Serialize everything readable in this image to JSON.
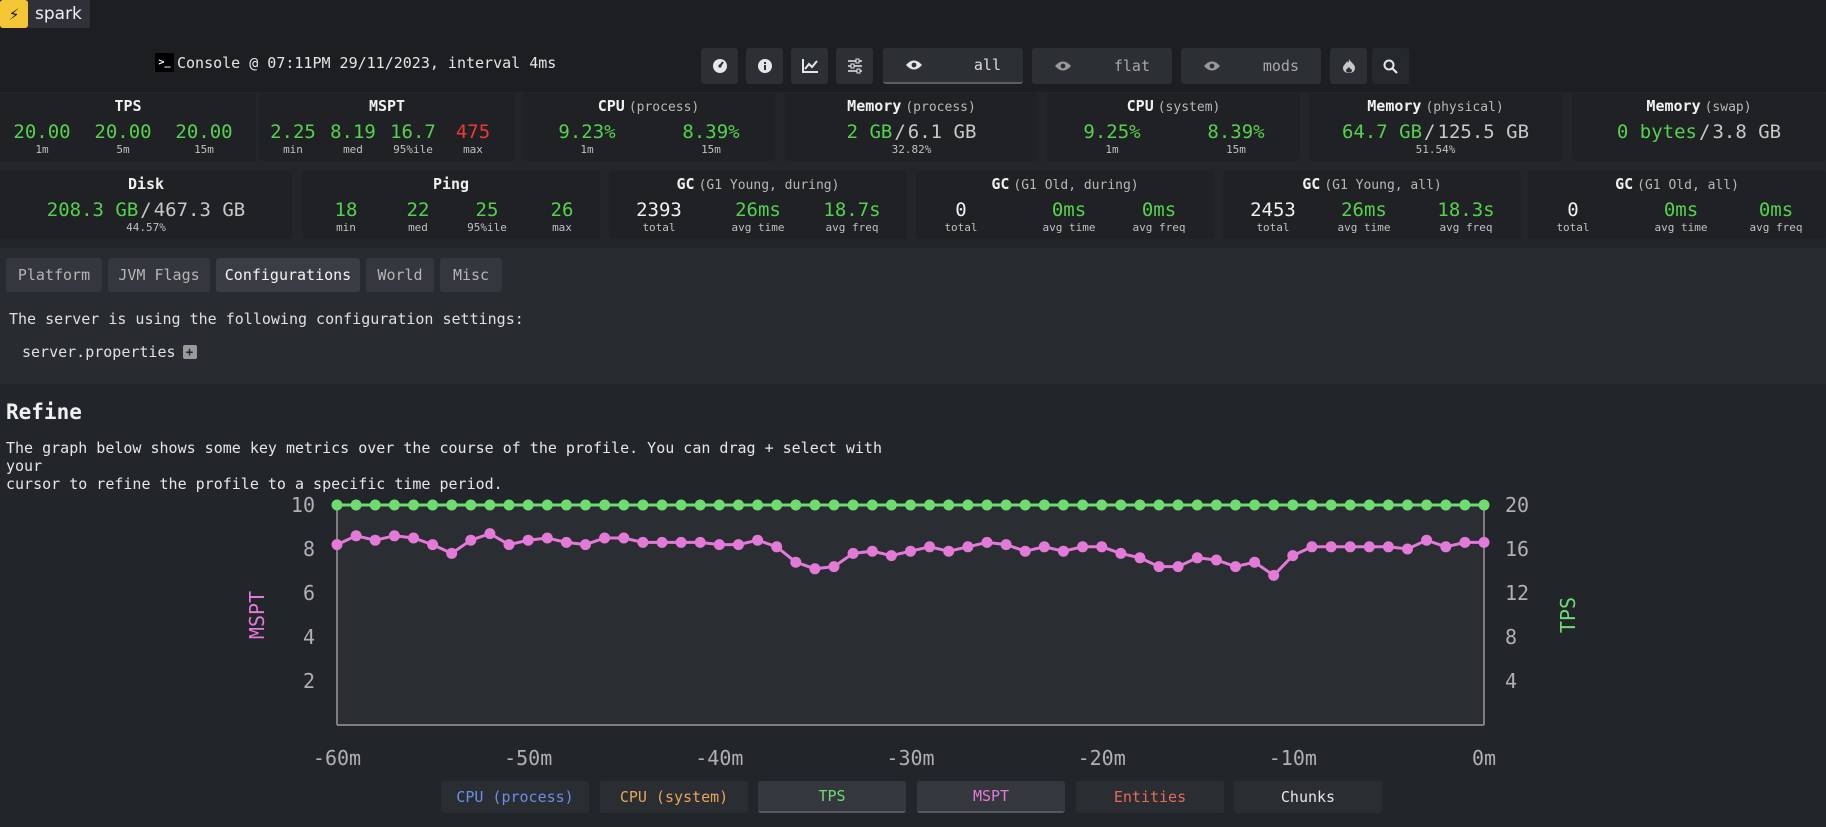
{
  "app": {
    "name": "spark",
    "logo_glyph": "⚡"
  },
  "header": {
    "console_icon": ">_",
    "console_text": "Console @ 07:11PM 29/11/2023, interval 4ms",
    "buttons": [
      {
        "name": "cpu-icon",
        "icon": "gauge"
      },
      {
        "name": "info-icon",
        "icon": "info"
      },
      {
        "name": "graph-icon",
        "icon": "chart"
      },
      {
        "name": "settings-icon",
        "icon": "sliders"
      }
    ],
    "view_modes": [
      {
        "label": "all",
        "active": true
      },
      {
        "label": "flat",
        "active": false
      },
      {
        "label": "mods",
        "active": false
      }
    ]
  },
  "stats_row1": [
    {
      "title": "TPS",
      "sub": "",
      "values": [
        {
          "v": "20.00",
          "c": "1m"
        },
        {
          "v": "20.00",
          "c": "5m"
        },
        {
          "v": "20.00",
          "c": "15m"
        }
      ]
    },
    {
      "title": "MSPT",
      "sub": "",
      "values": [
        {
          "v": "2.25",
          "c": "min"
        },
        {
          "v": "8.19",
          "c": "med"
        },
        {
          "v": "16.7",
          "c": "95%ile"
        },
        {
          "v": "475",
          "c": "max"
        }
      ]
    },
    {
      "title": "CPU",
      "sub": "(process)",
      "values": [
        {
          "v": "9.23%",
          "c": "1m"
        },
        {
          "v": "8.39%",
          "c": "15m"
        }
      ]
    },
    {
      "title": "Memory",
      "sub": "(process)",
      "used": "2 GB",
      "total": "6.1 GB",
      "caption": "32.82%"
    },
    {
      "title": "CPU",
      "sub": "(system)",
      "values": [
        {
          "v": "9.25%",
          "c": "1m"
        },
        {
          "v": "8.39%",
          "c": "15m"
        }
      ]
    },
    {
      "title": "Memory",
      "sub": "(physical)",
      "used": "64.7 GB",
      "total": "125.5 GB",
      "caption": "51.54%"
    },
    {
      "title": "Memory",
      "sub": "(swap)",
      "used": "0 bytes",
      "total": "3.8 GB",
      "caption": ""
    }
  ],
  "stats_row2": [
    {
      "title": "Disk",
      "sub": "",
      "used": "208.3 GB",
      "total": "467.3 GB",
      "caption": "44.57%"
    },
    {
      "title": "Ping",
      "sub": "",
      "values": [
        {
          "v": "18",
          "c": "min"
        },
        {
          "v": "22",
          "c": "med"
        },
        {
          "v": "25",
          "c": "95%ile"
        },
        {
          "v": "26",
          "c": "max"
        }
      ]
    },
    {
      "title": "GC",
      "sub": "(G1 Young, during)",
      "values": [
        {
          "v": "2393",
          "c": "total"
        },
        {
          "v": "26ms",
          "c": "avg time"
        },
        {
          "v": "18.7s",
          "c": "avg freq"
        }
      ]
    },
    {
      "title": "GC",
      "sub": "(G1 Old, during)",
      "values": [
        {
          "v": "0",
          "c": "total"
        },
        {
          "v": "0ms",
          "c": "avg time"
        },
        {
          "v": "0ms",
          "c": "avg freq"
        }
      ]
    },
    {
      "title": "GC",
      "sub": "(G1 Young, all)",
      "values": [
        {
          "v": "2453",
          "c": "total"
        },
        {
          "v": "26ms",
          "c": "avg time"
        },
        {
          "v": "18.3s",
          "c": "avg freq"
        }
      ]
    },
    {
      "title": "GC",
      "sub": "(G1 Old, all)",
      "values": [
        {
          "v": "0",
          "c": "total"
        },
        {
          "v": "0ms",
          "c": "avg time"
        },
        {
          "v": "0ms",
          "c": "avg freq"
        }
      ]
    }
  ],
  "tabs": [
    {
      "label": "Platform",
      "active": false
    },
    {
      "label": "JVM Flags",
      "active": false
    },
    {
      "label": "Configurations",
      "active": true
    },
    {
      "label": "World",
      "active": false
    },
    {
      "label": "Misc",
      "active": false
    }
  ],
  "config_panel": {
    "text": "The server is using the following configuration settings:",
    "file": "server.properties",
    "expand_glyph": "+"
  },
  "refine": {
    "title": "Refine",
    "description_line1": "The graph below shows some key metrics over the course of the profile. You can drag + select with your",
    "description_line2": "cursor to refine the profile to a specific time period."
  },
  "legend": [
    {
      "label": "CPU (process)",
      "color": "#6b8fe6",
      "on": false
    },
    {
      "label": "CPU (system)",
      "color": "#e8a65a",
      "on": false
    },
    {
      "label": "TPS",
      "color": "#6fdc70",
      "on": true
    },
    {
      "label": "MSPT",
      "color": "#e47ad8",
      "on": true
    },
    {
      "label": "Entities",
      "color": "#e86a5a",
      "on": false
    },
    {
      "label": "Chunks",
      "color": "#e6e6e6",
      "on": false
    }
  ],
  "chart_data": {
    "type": "line",
    "ylabel": "MSPT",
    "y2label": "TPS",
    "x_ticks": [
      "-60m",
      "-50m",
      "-40m",
      "-30m",
      "-20m",
      "-10m",
      "0m"
    ],
    "xlim": [
      -60,
      0
    ],
    "ylim": [
      0,
      10
    ],
    "y2lim": [
      0,
      20
    ],
    "y_ticks": [
      "2",
      "4",
      "6",
      "8",
      "10"
    ],
    "y2_ticks": [
      "4",
      "8",
      "12",
      "16",
      "20"
    ],
    "x": [
      -60,
      -59,
      -58,
      -57,
      -56,
      -55,
      -54,
      -53,
      -52,
      -51,
      -50,
      -49,
      -48,
      -47,
      -46,
      -45,
      -44,
      -43,
      -42,
      -41,
      -40,
      -39,
      -38,
      -37,
      -36,
      -35,
      -34,
      -33,
      -32,
      -31,
      -30,
      -29,
      -28,
      -27,
      -26,
      -25,
      -24,
      -23,
      -22,
      -21,
      -20,
      -19,
      -18,
      -17,
      -16,
      -15,
      -14,
      -13,
      -12,
      -11,
      -10,
      -9,
      -8,
      -7,
      -6,
      -5,
      -4,
      -3,
      -2,
      -1,
      0
    ],
    "series": [
      {
        "name": "MSPT",
        "axis": "left",
        "color": "#e47ad8",
        "values": [
          8.2,
          8.6,
          8.4,
          8.6,
          8.5,
          8.2,
          7.8,
          8.4,
          8.7,
          8.2,
          8.4,
          8.5,
          8.3,
          8.2,
          8.5,
          8.5,
          8.3,
          8.3,
          8.3,
          8.3,
          8.2,
          8.2,
          8.4,
          8.1,
          7.4,
          7.1,
          7.2,
          7.8,
          7.9,
          7.7,
          7.9,
          8.1,
          7.9,
          8.1,
          8.3,
          8.2,
          7.9,
          8.1,
          7.9,
          8.1,
          8.1,
          7.8,
          7.6,
          7.2,
          7.2,
          7.6,
          7.5,
          7.2,
          7.4,
          6.8,
          7.7,
          8.1,
          8.1,
          8.1,
          8.1,
          8.1,
          8.0,
          8.4,
          8.1,
          8.3,
          8.3
        ]
      },
      {
        "name": "TPS",
        "axis": "right",
        "color": "#6fdc70",
        "values": [
          20,
          20,
          20,
          20,
          20,
          20,
          20,
          20,
          20,
          20,
          20,
          20,
          20,
          20,
          20,
          20,
          20,
          20,
          20,
          20,
          20,
          20,
          20,
          20,
          20,
          20,
          20,
          20,
          20,
          20,
          20,
          20,
          20,
          20,
          20,
          20,
          20,
          20,
          20,
          20,
          20,
          20,
          20,
          20,
          20,
          20,
          20,
          20,
          20,
          20,
          20,
          20,
          20,
          20,
          20,
          20,
          20,
          20,
          20,
          20,
          20
        ]
      }
    ]
  }
}
